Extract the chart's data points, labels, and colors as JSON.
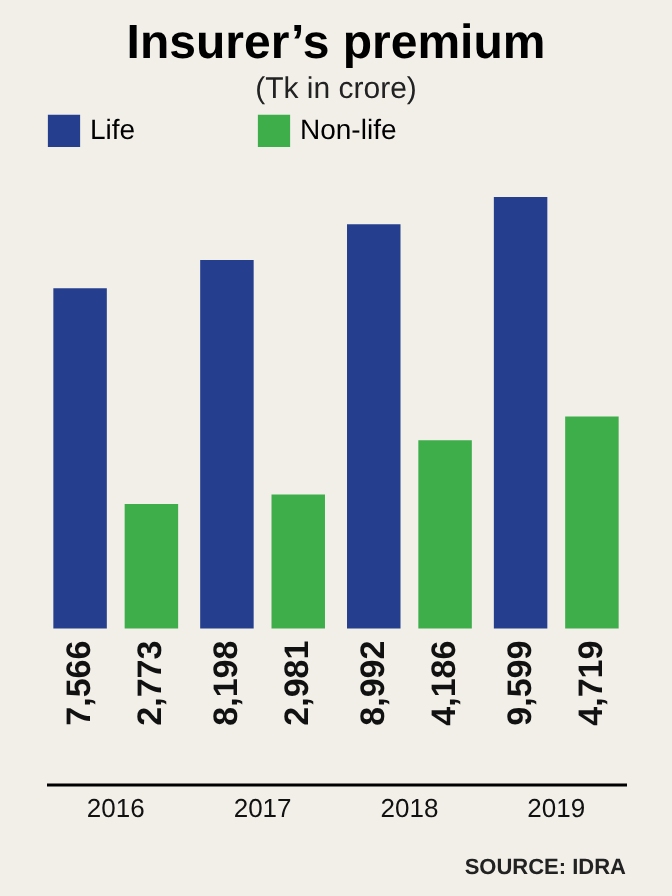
{
  "chart_data": {
    "type": "bar",
    "title": "Insurer’s premium",
    "subtitle": "(Tk in crore)",
    "annotations": [
      "SOURCE: IDRA"
    ],
    "categories": [
      "2016",
      "2017",
      "2018",
      "2019"
    ],
    "series": [
      {
        "name": "Life",
        "color": "#253f8e",
        "values": [
          7566,
          8198,
          8992,
          9599
        ],
        "value_labels": [
          "7,566",
          "8,198",
          "8,992",
          "9,599"
        ]
      },
      {
        "name": "Non-life",
        "color": "#3dae4a",
        "values": [
          2773,
          2981,
          4186,
          4719
        ],
        "value_labels": [
          "2,773",
          "2,981",
          "4,186",
          "4,719"
        ]
      }
    ],
    "legend": "top",
    "grid": false
  }
}
